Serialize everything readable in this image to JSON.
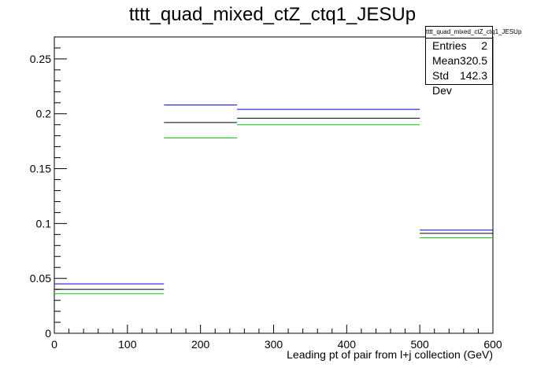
{
  "chart_data": {
    "type": "histogram",
    "title": "tttt_quad_mixed_ctZ_ctq1_JESUp",
    "xlabel": "Leading pt of pair from l+j collection (GeV)",
    "ylabel": "",
    "xlim": [
      0,
      600
    ],
    "ylim": [
      0,
      0.27
    ],
    "x_ticks": [
      "0",
      "100",
      "200",
      "300",
      "400",
      "500",
      "600"
    ],
    "y_ticks": [
      "0",
      "0.05",
      "0.1",
      "0.15",
      "0.2",
      "0.25"
    ],
    "bin_edges": [
      0,
      150,
      250,
      500,
      600
    ],
    "series": [
      {
        "color": "#0000cc",
        "values": [
          0.045,
          0.208,
          0.204,
          0.094
        ]
      },
      {
        "color": "#000000",
        "values": [
          0.04,
          0.192,
          0.196,
          0.091
        ]
      },
      {
        "color": "#00cc00",
        "values": [
          0.036,
          0.178,
          0.19,
          0.087
        ]
      }
    ],
    "grid": false,
    "stats": {
      "title": "tttt_quad_mixed_ctZ_ctq1_JESUp",
      "rows": [
        {
          "label": "Entries",
          "value": "2"
        },
        {
          "label": "Mean",
          "value": "320.5"
        },
        {
          "label": "Std Dev",
          "value": "142.3"
        }
      ]
    }
  }
}
